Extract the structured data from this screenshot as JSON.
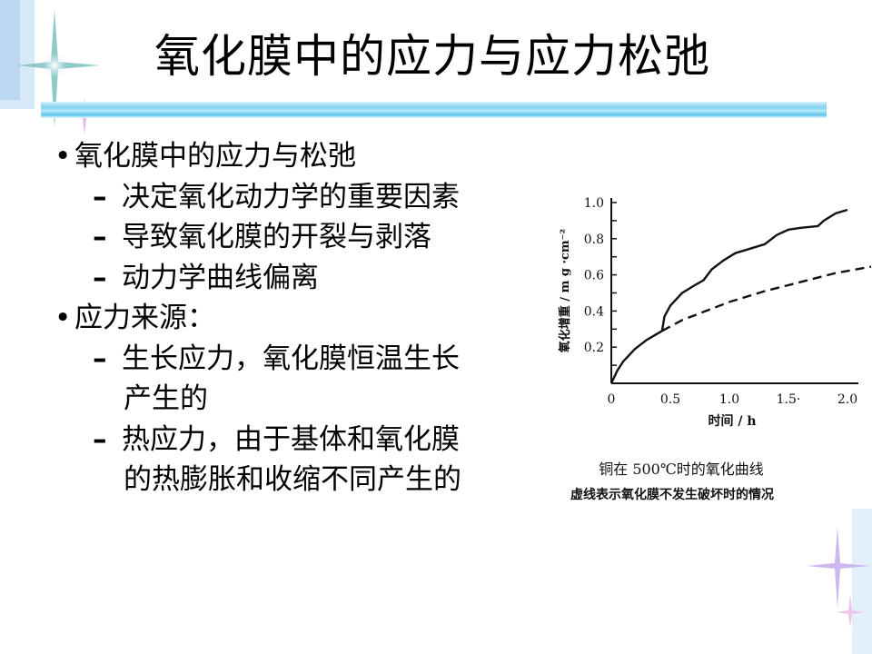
{
  "slide": {
    "title": "氧化膜中的应力与应力松弛",
    "bullets": [
      {
        "text": "氧化膜中的应力与松弛",
        "sub": [
          {
            "text": "决定氧化动力学的重要因素"
          },
          {
            "text": "导致氧化膜的开裂与剥落"
          },
          {
            "text": "动力学曲线偏离"
          }
        ]
      },
      {
        "text": "应力来源：",
        "sub": [
          {
            "text": "生长应力，氧化膜恒温生长",
            "cont": "产生的"
          },
          {
            "text": "热应力，由于基体和氧化膜",
            "cont": "的热膨胀和收缩不同产生的"
          }
        ]
      }
    ],
    "bullet_symbol": "•",
    "dash_symbol": "–"
  },
  "chart_data": {
    "type": "line",
    "title": "铜在 500℃时的氧化曲线",
    "subtitle": "虚线表示氧化膜不发生破坏时的情况",
    "xlabel": "时间 / h",
    "ylabel": "氧化增重 / m g ·cm⁻²",
    "xlim": [
      0,
      2.2
    ],
    "ylim": [
      0,
      1.0
    ],
    "x_ticks": [
      "0",
      "0.5",
      "1.0",
      "1.5·",
      "2.0"
    ],
    "x_tick_values": [
      0,
      0.5,
      1.0,
      1.5,
      2.0
    ],
    "y_ticks": [
      "0.2",
      "0.4",
      "0.6",
      "0.8",
      "1.0"
    ],
    "y_tick_values": [
      0.2,
      0.4,
      0.6,
      0.8,
      1.0
    ],
    "grid": false,
    "series": [
      {
        "style": "solid",
        "points": [
          [
            0,
            0
          ],
          [
            0.05,
            0.07
          ],
          [
            0.1,
            0.12
          ],
          [
            0.2,
            0.19
          ],
          [
            0.3,
            0.24
          ],
          [
            0.43,
            0.29
          ],
          [
            0.45,
            0.37
          ],
          [
            0.5,
            0.43
          ],
          [
            0.6,
            0.5
          ],
          [
            0.7,
            0.54
          ],
          [
            0.78,
            0.57
          ],
          [
            0.85,
            0.63
          ],
          [
            0.95,
            0.68
          ],
          [
            1.05,
            0.72
          ],
          [
            1.2,
            0.75
          ],
          [
            1.3,
            0.77
          ],
          [
            1.4,
            0.82
          ],
          [
            1.5,
            0.85
          ],
          [
            1.6,
            0.86
          ],
          [
            1.75,
            0.87
          ],
          [
            1.8,
            0.9
          ],
          [
            1.9,
            0.94
          ],
          [
            2.0,
            0.96
          ]
        ]
      },
      {
        "style": "dashed",
        "points": [
          [
            0.43,
            0.29
          ],
          [
            0.6,
            0.35
          ],
          [
            0.8,
            0.4
          ],
          [
            1.0,
            0.45
          ],
          [
            1.3,
            0.51
          ],
          [
            1.6,
            0.56
          ],
          [
            1.9,
            0.61
          ],
          [
            2.2,
            0.645
          ]
        ]
      }
    ]
  }
}
